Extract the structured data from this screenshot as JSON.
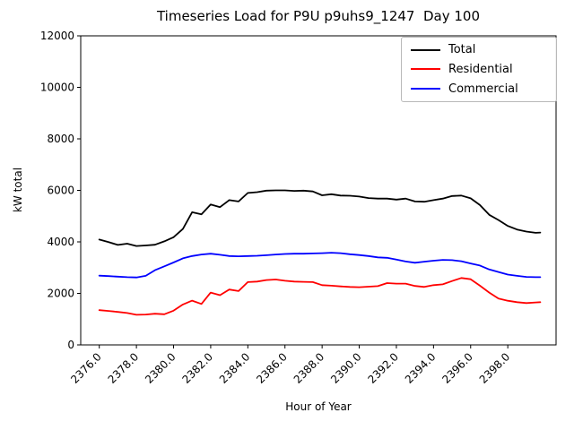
{
  "chart_data": {
    "type": "line",
    "title": "Timeseries Load for P9U p9uhs9_1247  Day 100",
    "xlabel": "Hour of Year",
    "ylabel": "kW total",
    "xlim": [
      2375.0,
      2400.6
    ],
    "ylim": [
      0,
      12000
    ],
    "grid": false,
    "legend_position": "upper right",
    "xticks": [
      2376,
      2378,
      2380,
      2382,
      2384,
      2386,
      2388,
      2390,
      2392,
      2394,
      2396,
      2398
    ],
    "xtick_labels": [
      "2376.0",
      "2378.0",
      "2380.0",
      "2382.0",
      "2384.0",
      "2386.0",
      "2388.0",
      "2390.0",
      "2392.0",
      "2394.0",
      "2396.0",
      "2398.0"
    ],
    "yticks": [
      0,
      2000,
      4000,
      6000,
      8000,
      10000,
      12000
    ],
    "ytick_labels": [
      "0",
      "2000",
      "4000",
      "6000",
      "8000",
      "10000",
      "12000"
    ],
    "x": [
      2376,
      2376.5,
      2377,
      2377.5,
      2378,
      2378.5,
      2379,
      2379.5,
      2380,
      2380.5,
      2381,
      2381.5,
      2382,
      2382.5,
      2383,
      2383.5,
      2384,
      2384.5,
      2385,
      2385.5,
      2386,
      2386.5,
      2387,
      2387.5,
      2388,
      2388.5,
      2389,
      2389.5,
      2390,
      2390.5,
      2391,
      2391.5,
      2392,
      2392.5,
      2393,
      2393.5,
      2394,
      2394.5,
      2395,
      2395.5,
      2396,
      2396.5,
      2397,
      2397.5,
      2398,
      2398.5,
      2399,
      2399.5,
      2399.75
    ],
    "series": [
      {
        "name": "Total",
        "color": "#000000",
        "values": [
          4090,
          3990,
          3880,
          3930,
          3840,
          3860,
          3890,
          4020,
          4180,
          4500,
          5150,
          5070,
          5450,
          5350,
          5620,
          5570,
          5900,
          5930,
          5990,
          6000,
          6000,
          5980,
          5990,
          5960,
          5810,
          5850,
          5800,
          5790,
          5760,
          5700,
          5680,
          5680,
          5640,
          5680,
          5570,
          5560,
          5620,
          5680,
          5780,
          5800,
          5690,
          5430,
          5050,
          4850,
          4620,
          4480,
          4400,
          4350,
          4360
        ]
      },
      {
        "name": "Residential",
        "color": "#ff0000",
        "values": [
          1350,
          1320,
          1280,
          1240,
          1170,
          1180,
          1210,
          1190,
          1330,
          1570,
          1720,
          1590,
          2030,
          1930,
          2150,
          2090,
          2440,
          2460,
          2520,
          2540,
          2490,
          2460,
          2450,
          2440,
          2320,
          2300,
          2270,
          2250,
          2240,
          2260,
          2280,
          2400,
          2380,
          2380,
          2290,
          2250,
          2320,
          2350,
          2480,
          2600,
          2550,
          2300,
          2030,
          1800,
          1715,
          1660,
          1625,
          1650,
          1660
        ]
      },
      {
        "name": "Commercial",
        "color": "#0000ff",
        "values": [
          2690,
          2670,
          2650,
          2630,
          2620,
          2680,
          2900,
          3050,
          3200,
          3360,
          3450,
          3510,
          3540,
          3500,
          3450,
          3440,
          3450,
          3460,
          3480,
          3510,
          3530,
          3540,
          3540,
          3550,
          3560,
          3580,
          3560,
          3520,
          3490,
          3450,
          3400,
          3380,
          3310,
          3240,
          3190,
          3230,
          3270,
          3300,
          3290,
          3250,
          3160,
          3080,
          2930,
          2830,
          2730,
          2680,
          2640,
          2630,
          2630
        ]
      }
    ]
  }
}
